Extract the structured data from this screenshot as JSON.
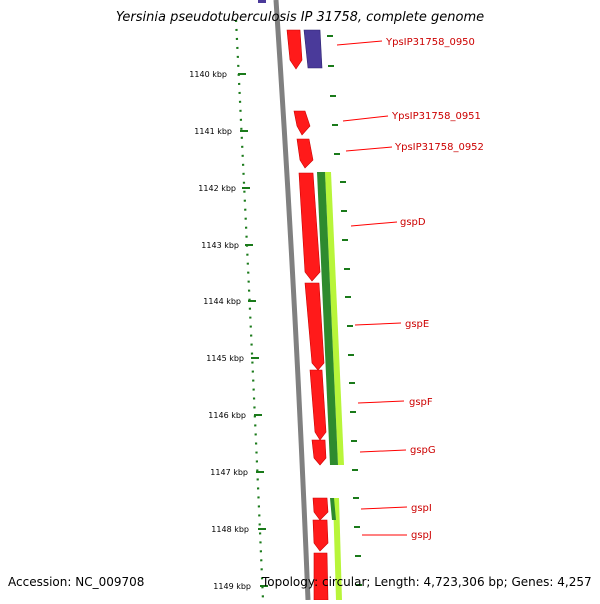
{
  "title": "Yersinia pseudotuberculosis IP 31758, complete genome",
  "footer": {
    "accession": "Accession: NC_009708",
    "summary": "Topology: circular; Length: 4,723,306 bp; Genes: 4,257"
  },
  "ticks": [
    "1140 kbp",
    "1141 kbp",
    "1142 kbp",
    "1143 kbp",
    "1144 kbp",
    "1145 kbp",
    "1146 kbp",
    "1147 kbp",
    "1148 kbp",
    "1149 kbp"
  ],
  "genes": [
    {
      "label": "YpsIP31758_0950"
    },
    {
      "label": "YpsIP31758_0951"
    },
    {
      "label": "YpsIP31758_0952"
    },
    {
      "label": "gspD"
    },
    {
      "label": "gspE"
    },
    {
      "label": "gspF"
    },
    {
      "label": "gspG"
    },
    {
      "label": "gspI"
    },
    {
      "label": "gspJ"
    }
  ],
  "colors": {
    "gene_red": "#ff1a1a",
    "gene_blue": "#4a3a9a",
    "track_dark_green": "#2e8b2e",
    "track_light_green": "#b8f53a",
    "tick_green": "#1a7a1a",
    "backbone_grey": "#808080",
    "label_red": "#cc0000"
  }
}
